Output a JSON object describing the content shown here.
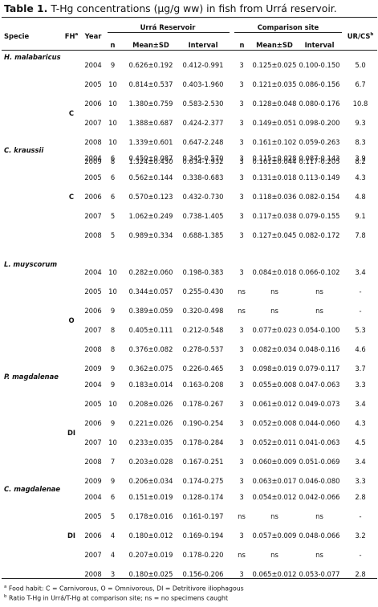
{
  "caption": {
    "label": "Table 1.",
    "text": "T-Hg concentrations (μg/g ww) in fish from Urrá reservoir."
  },
  "headers": {
    "specie": "Specie",
    "fh": "FH",
    "fh_sup": "a",
    "year": "Year",
    "urra_group": "Urrá Reservoir",
    "comp_group": "Comparison site",
    "n": "n",
    "mean_sd": "Mean±SD",
    "interval": "Interval",
    "ratio": "UR/CS",
    "ratio_sup": "b"
  },
  "groups": [
    {
      "species": "H. malabaricus",
      "fh": "C",
      "rows": [
        {
          "year": "2004",
          "n1": "9",
          "mean1": "0.626±0.192",
          "int1": "0.412-0.991",
          "n2": "3",
          "mean2": "0.125±0.025",
          "int2": "0.100-0.150",
          "ratio": "5.0"
        },
        {
          "year": "2005",
          "n1": "10",
          "mean1": "0.814±0.537",
          "int1": "0.403-1.960",
          "n2": "3",
          "mean2": "0.121±0.035",
          "int2": "0.086-0.156",
          "ratio": "6.7"
        },
        {
          "year": "2006",
          "n1": "10",
          "mean1": "1.380±0.759",
          "int1": "0.583-2.530",
          "n2": "3",
          "mean2": "0.128±0.048",
          "int2": "0.080-0.176",
          "ratio": "10.8"
        },
        {
          "year": "2007",
          "n1": "10",
          "mean1": "1.388±0.687",
          "int1": "0.424-2.377",
          "n2": "3",
          "mean2": "0.149±0.051",
          "int2": "0.098-0.200",
          "ratio": "9.3"
        },
        {
          "year": "2008",
          "n1": "10",
          "mean1": "1.339±0.601",
          "int1": "0.647-2.248",
          "n2": "3",
          "mean2": "0.161±0.102",
          "int2": "0.059-0.263",
          "ratio": "8.3"
        },
        {
          "year": "2009",
          "n1": "8",
          "mean1": "1.324±0.430",
          "int1": "0.634-1.932",
          "n2": "3",
          "mean2": "0.161±0.044",
          "int2": "0.117-0.205",
          "ratio": "8.2"
        }
      ]
    },
    {
      "species": "C. kraussii",
      "fh": "C",
      "rows": [
        {
          "year": "2004",
          "n1": "6",
          "mean1": "0.450±0.087",
          "int1": "0.345-0.570",
          "n2": "3",
          "mean2": "0.115±0.028",
          "int2": "0.087-0.143",
          "ratio": "3.9"
        },
        {
          "year": "2005",
          "n1": "6",
          "mean1": "0.562±0.144",
          "int1": "0.338-0.683",
          "n2": "3",
          "mean2": "0.131±0.018",
          "int2": "0.113-0.149",
          "ratio": "4.3"
        },
        {
          "year": "2006",
          "n1": "6",
          "mean1": "0.570±0.123",
          "int1": "0.432-0.730",
          "n2": "3",
          "mean2": "0.118±0.036",
          "int2": "0.082-0.154",
          "ratio": "4.8"
        },
        {
          "year": "2007",
          "n1": "5",
          "mean1": "1.062±0.249",
          "int1": "0.738-1.405",
          "n2": "3",
          "mean2": "0.117±0.038",
          "int2": "0.079-0.155",
          "ratio": "9.1"
        },
        {
          "year": "2008",
          "n1": "5",
          "mean1": "0.989±0.334",
          "int1": "0.688-1.385",
          "n2": "3",
          "mean2": "0.127±0.045",
          "int2": "0.082-0.172",
          "ratio": "7.8"
        }
      ]
    },
    {
      "species": "L. muyscorum",
      "fh": "O",
      "rows": [
        {
          "year": "2004",
          "n1": "10",
          "mean1": "0.282±0.060",
          "int1": "0.198-0.383",
          "n2": "3",
          "mean2": "0.084±0.018",
          "int2": "0.066-0.102",
          "ratio": "3.4"
        },
        {
          "year": "2005",
          "n1": "10",
          "mean1": "0.344±0.057",
          "int1": "0.255-0.430",
          "n2": "ns",
          "mean2": "ns",
          "int2": "ns",
          "ratio": "-"
        },
        {
          "year": "2006",
          "n1": "9",
          "mean1": "0.389±0.059",
          "int1": "0.320-0.498",
          "n2": "ns",
          "mean2": "ns",
          "int2": "ns",
          "ratio": "-"
        },
        {
          "year": "2007",
          "n1": "8",
          "mean1": "0.405±0.111",
          "int1": "0.212-0.548",
          "n2": "3",
          "mean2": "0.077±0.023",
          "int2": "0.054-0.100",
          "ratio": "5.3"
        },
        {
          "year": "2008",
          "n1": "8",
          "mean1": "0.376±0.082",
          "int1": "0.278-0.537",
          "n2": "3",
          "mean2": "0.082±0.034",
          "int2": "0.048-0.116",
          "ratio": "4.6"
        },
        {
          "year": "2009",
          "n1": "9",
          "mean1": "0.362±0.075",
          "int1": "0.226-0.465",
          "n2": "3",
          "mean2": "0.098±0.019",
          "int2": "0.079-0.117",
          "ratio": "3.7"
        }
      ]
    },
    {
      "species": "P. magdalenae",
      "fh": "DI",
      "rows": [
        {
          "year": "2004",
          "n1": "9",
          "mean1": "0.183±0.014",
          "int1": "0.163-0.208",
          "n2": "3",
          "mean2": "0.055±0.008",
          "int2": "0.047-0.063",
          "ratio": "3.3"
        },
        {
          "year": "2005",
          "n1": "10",
          "mean1": "0.208±0.026",
          "int1": "0.178-0.267",
          "n2": "3",
          "mean2": "0.061±0.012",
          "int2": "0.049-0.073",
          "ratio": "3.4"
        },
        {
          "year": "2006",
          "n1": "9",
          "mean1": "0.221±0.026",
          "int1": "0.190-0.254",
          "n2": "3",
          "mean2": "0.052±0.008",
          "int2": "0.044-0.060",
          "ratio": "4.3"
        },
        {
          "year": "2007",
          "n1": "10",
          "mean1": "0.233±0.035",
          "int1": "0.178-0.284",
          "n2": "3",
          "mean2": "0.052±0.011",
          "int2": "0.041-0.063",
          "ratio": "4.5"
        },
        {
          "year": "2008",
          "n1": "7",
          "mean1": "0.203±0.028",
          "int1": "0.167-0.251",
          "n2": "3",
          "mean2": "0.060±0.009",
          "int2": "0.051-0.069",
          "ratio": "3.4"
        },
        {
          "year": "2009",
          "n1": "9",
          "mean1": "0.206±0.034",
          "int1": "0.174-0.275",
          "n2": "3",
          "mean2": "0.063±0.017",
          "int2": "0.046-0.080",
          "ratio": "3.3"
        }
      ]
    },
    {
      "species": "C. magdalenae",
      "fh": "DI",
      "rows": [
        {
          "year": "2004",
          "n1": "6",
          "mean1": "0.151±0.019",
          "int1": "0.128-0.174",
          "n2": "3",
          "mean2": "0.054±0.012",
          "int2": "0.042-0.066",
          "ratio": "2.8"
        },
        {
          "year": "2005",
          "n1": "5",
          "mean1": "0.178±0.016",
          "int1": "0.161-0.197",
          "n2": "ns",
          "mean2": "ns",
          "int2": "ns",
          "ratio": "-"
        },
        {
          "year": "2006",
          "n1": "4",
          "mean1": "0.180±0.012",
          "int1": "0.169-0.194",
          "n2": "3",
          "mean2": "0.057±0.009",
          "int2": "0.048-0.066",
          "ratio": "3.2"
        },
        {
          "year": "2007",
          "n1": "4",
          "mean1": "0.207±0.019",
          "int1": "0.178-0.220",
          "n2": "ns",
          "mean2": "ns",
          "int2": "ns",
          "ratio": "-"
        },
        {
          "year": "2008",
          "n1": "3",
          "mean1": "0.180±0.025",
          "int1": "0.156-0.206",
          "n2": "3",
          "mean2": "0.065±0.012",
          "int2": "0.053-0.077",
          "ratio": "2.8"
        }
      ]
    }
  ],
  "footnotes": [
    {
      "mark": "a",
      "text": "Food habit: C = Carnivorous, O = Omnivorous, DI = Detritivore iliophagous"
    },
    {
      "mark": "b",
      "text": "Ratio T-Hg in Urrá/T-Hg at comparison site; ns = no specimens caught"
    }
  ]
}
